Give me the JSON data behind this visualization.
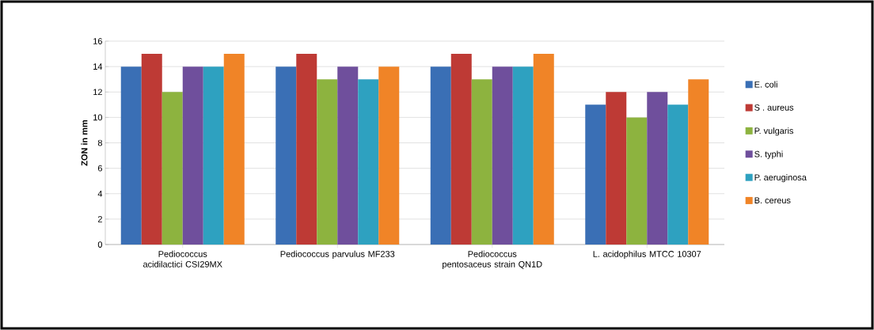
{
  "chart_data": {
    "type": "bar",
    "ylabel": "ZON in mm",
    "categories": [
      "Pediococcus acidilactici CSI29MX",
      "Pediococcus parvulus MF233",
      "Pediococcus pentosaceus strain QN1D",
      "L. acidophilus MTCC 10307"
    ],
    "series": [
      {
        "name": "E. coli",
        "color": "#3a6fb5",
        "values": [
          14,
          14,
          14,
          11
        ]
      },
      {
        "name": "S . aureus",
        "color": "#be3a35",
        "values": [
          15,
          15,
          15,
          12
        ]
      },
      {
        "name": "P. vulgaris",
        "color": "#8db33f",
        "values": [
          12,
          13,
          13,
          10
        ]
      },
      {
        "name": "S. typhi",
        "color": "#6f4f9c",
        "values": [
          14,
          14,
          14,
          12
        ]
      },
      {
        "name": "P. aeruginosa",
        "color": "#2ea1c0",
        "values": [
          14,
          13,
          14,
          11
        ]
      },
      {
        "name": "B. cereus",
        "color": "#f08427",
        "values": [
          15,
          14,
          15,
          13
        ]
      }
    ],
    "ylim": [
      0,
      16
    ],
    "yticks": [
      0,
      2,
      4,
      6,
      8,
      10,
      12,
      14,
      16
    ],
    "grid": "y",
    "legend": "right"
  }
}
